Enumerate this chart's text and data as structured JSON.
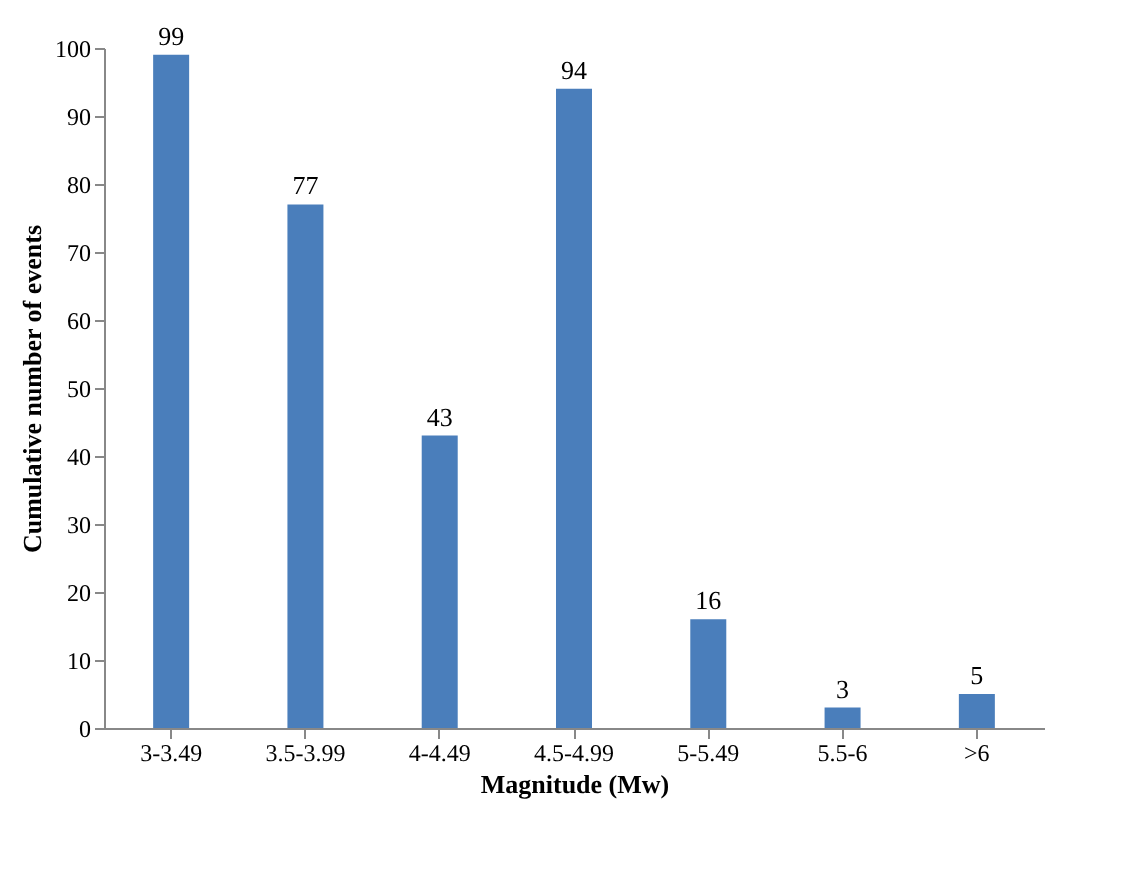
{
  "chart_data": {
    "type": "bar",
    "xlabel": "Magnitude (Mw)",
    "ylabel": "Cumulative number of events",
    "categories": [
      "3-3.49",
      "3.5-3.99",
      "4-4.49",
      "4.5-4.99",
      "5-5.49",
      "5.5-6",
      ">6"
    ],
    "values": [
      99,
      77,
      43,
      94,
      16,
      3,
      5
    ],
    "color": "#4a7ebb",
    "ylim": [
      0,
      100
    ],
    "yticks": [
      0,
      10,
      20,
      30,
      40,
      50,
      60,
      70,
      80,
      90,
      100
    ],
    "grid": false,
    "data_labels": true
  }
}
